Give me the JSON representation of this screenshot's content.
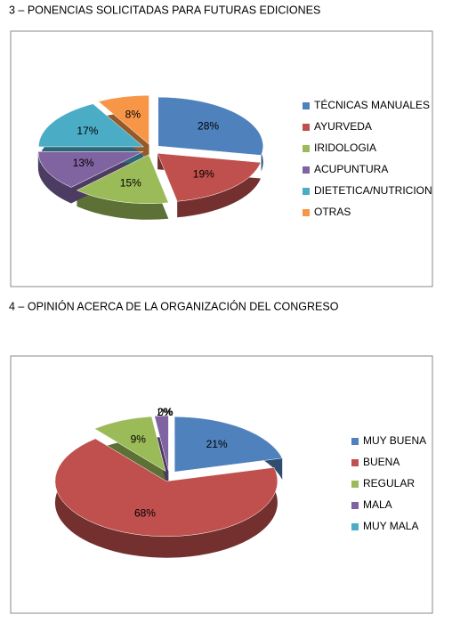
{
  "chart_data": [
    {
      "type": "pie",
      "title": "3 – PONENCIAS SOLICITADAS PARA FUTURAS EDICIONES",
      "categories": [
        "TÉCNICAS MANUALES",
        "AYURVEDA",
        "IRIDOLOGIA",
        "ACUPUNTURA",
        "DIETETICA/NUTRICION",
        "OTRAS"
      ],
      "values": [
        28,
        19,
        15,
        13,
        17,
        8
      ],
      "value_labels": [
        "28%",
        "19%",
        "15%",
        "13%",
        "17%",
        "8%"
      ],
      "colors": [
        "#4f81bd",
        "#c0504d",
        "#9bbb59",
        "#8064a2",
        "#4bacc6",
        "#f79646"
      ],
      "legend": "right"
    },
    {
      "type": "pie",
      "title": "4 – OPINIÓN ACERCA DE LA ORGANIZACIÓN DEL CONGRESO",
      "categories": [
        "MUY BUENA",
        "BUENA",
        "REGULAR",
        "MALA",
        "MUY MALA"
      ],
      "values": [
        21,
        68,
        9,
        2,
        0
      ],
      "value_labels": [
        "21%",
        "68%",
        "9%",
        "2%",
        "0%"
      ],
      "colors": [
        "#4f81bd",
        "#c0504d",
        "#9bbb59",
        "#8064a2",
        "#4bacc6"
      ],
      "legend": "right"
    }
  ]
}
